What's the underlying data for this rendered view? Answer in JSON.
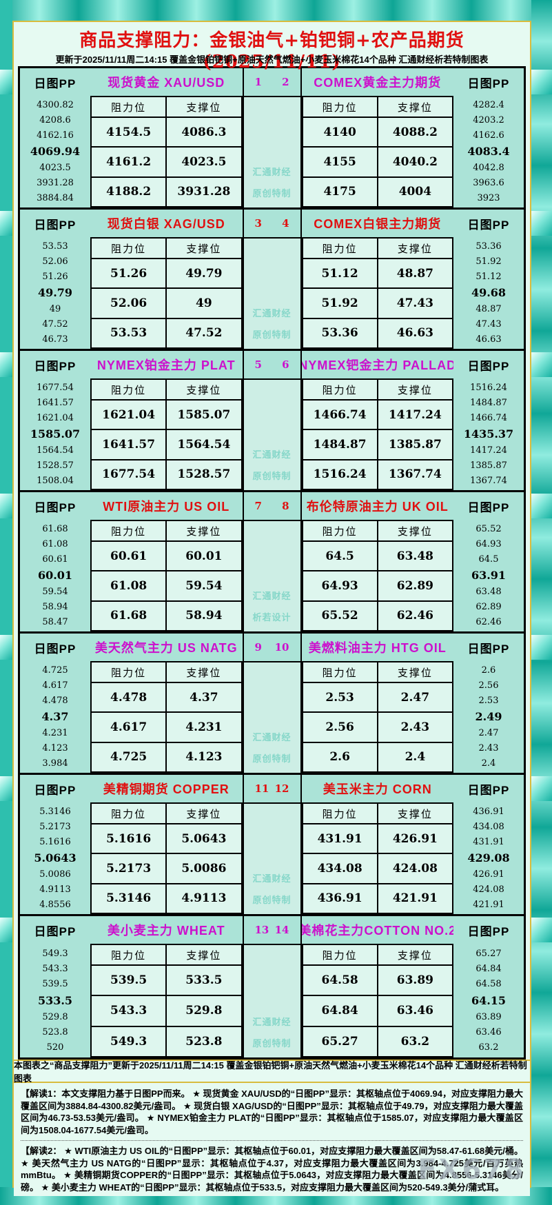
{
  "header": {
    "title": "商品支撑阻力：金银油气+铂钯铜+农产品期货(2025/11/11)",
    "subtitle": "更新于2025/11/11周二14:15 覆盖金银铂钯铜+原油天然气燃油+小麦玉米棉花14个品种 汇通财经析若特制图表"
  },
  "labels": {
    "pp_header": "日图PP",
    "resistance": "阻力位",
    "support": "支撑位"
  },
  "colors": {
    "magenta": "#cc10cc",
    "red": "#e01010",
    "gold_border": "#d8bc3e",
    "panel_bg": "#e6faf2",
    "section_bg": "#abe3d7",
    "cell_bg": "#def6ee",
    "center_bg": "#cdeee5",
    "watermark_teal": "#86d7c9"
  },
  "chart_data": {
    "type": "table",
    "title": "商品支撑阻力：金银油气+铂钯铜+农产品期货(2025/11/11)",
    "updated": "2025/11/11周二14:15",
    "columns": [
      "阻力位",
      "支撑位"
    ],
    "groups": [
      {
        "color": "#cc10cc",
        "index_left": "1",
        "index_right": "2",
        "watermark": [
          "汇通财经",
          "原创特制"
        ],
        "left": {
          "name": "现货黄金 XAU/USD",
          "pivots": [
            "4300.82",
            "4208.6",
            "4162.16",
            "4069.94",
            "4023.5",
            "3931.28",
            "3884.84"
          ],
          "resistance": [
            "4154.5",
            "4161.2",
            "4188.2"
          ],
          "support": [
            "4086.3",
            "4023.5",
            "3931.28"
          ]
        },
        "right": {
          "name": "COMEX黄金主力期货",
          "pivots": [
            "4282.4",
            "4203.2",
            "4162.6",
            "4083.4",
            "4042.8",
            "3963.6",
            "3923"
          ],
          "resistance": [
            "4140",
            "4155",
            "4175"
          ],
          "support": [
            "4088.2",
            "4040.2",
            "4004"
          ]
        }
      },
      {
        "color": "#e01010",
        "index_left": "3",
        "index_right": "4",
        "watermark": [
          "汇通财经",
          "原创特制"
        ],
        "left": {
          "name": "现货白银 XAG/USD",
          "pivots": [
            "53.53",
            "52.06",
            "51.26",
            "49.79",
            "49",
            "47.52",
            "46.73"
          ],
          "resistance": [
            "51.26",
            "52.06",
            "53.53"
          ],
          "support": [
            "49.79",
            "49",
            "47.52"
          ]
        },
        "right": {
          "name": "COMEX白银主力期货",
          "pivots": [
            "53.36",
            "51.92",
            "51.12",
            "49.68",
            "48.87",
            "47.43",
            "46.63"
          ],
          "resistance": [
            "51.12",
            "51.92",
            "53.36"
          ],
          "support": [
            "48.87",
            "47.43",
            "46.63"
          ]
        }
      },
      {
        "color": "#cc10cc",
        "index_left": "5",
        "index_right": "6",
        "watermark": [
          "汇通财经",
          "原创特制"
        ],
        "left": {
          "name": "NYMEX铂金主力 PLAT",
          "pivots": [
            "1677.54",
            "1641.57",
            "1621.04",
            "1585.07",
            "1564.54",
            "1528.57",
            "1508.04"
          ],
          "resistance": [
            "1621.04",
            "1641.57",
            "1677.54"
          ],
          "support": [
            "1585.07",
            "1564.54",
            "1528.57"
          ]
        },
        "right": {
          "name": "NYMEX钯金主力 PALLAD",
          "pivots": [
            "1516.24",
            "1484.87",
            "1466.74",
            "1435.37",
            "1417.24",
            "1385.87",
            "1367.74"
          ],
          "resistance": [
            "1466.74",
            "1484.87",
            "1516.24"
          ],
          "support": [
            "1417.24",
            "1385.87",
            "1367.74"
          ]
        }
      },
      {
        "color": "#e01010",
        "index_left": "7",
        "index_right": "8",
        "watermark": [
          "汇通财经",
          "析若设计"
        ],
        "left": {
          "name": "WTI原油主力 US OIL",
          "pivots": [
            "61.68",
            "61.08",
            "60.61",
            "60.01",
            "59.54",
            "58.94",
            "58.47"
          ],
          "resistance": [
            "60.61",
            "61.08",
            "61.68"
          ],
          "support": [
            "60.01",
            "59.54",
            "58.94"
          ]
        },
        "right": {
          "name": "布伦特原油主力 UK OIL",
          "pivots": [
            "65.52",
            "64.93",
            "64.5",
            "63.91",
            "63.48",
            "62.89",
            "62.46"
          ],
          "resistance": [
            "64.5",
            "64.93",
            "65.52"
          ],
          "support": [
            "63.48",
            "62.89",
            "62.46"
          ]
        }
      },
      {
        "color": "#cc10cc",
        "index_left": "9",
        "index_right": "10",
        "watermark": [
          "汇通财经",
          "原创特制"
        ],
        "left": {
          "name": "美天然气主力 US NATG",
          "pivots": [
            "4.725",
            "4.617",
            "4.478",
            "4.37",
            "4.231",
            "4.123",
            "3.984"
          ],
          "resistance": [
            "4.478",
            "4.617",
            "4.725"
          ],
          "support": [
            "4.37",
            "4.231",
            "4.123"
          ]
        },
        "right": {
          "name": "美燃料油主力 HTG OIL",
          "pivots": [
            "2.6",
            "2.56",
            "2.53",
            "2.49",
            "2.47",
            "2.43",
            "2.4"
          ],
          "resistance": [
            "2.53",
            "2.56",
            "2.6"
          ],
          "support": [
            "2.47",
            "2.43",
            "2.4"
          ]
        }
      },
      {
        "color": "#e01010",
        "index_left": "11",
        "index_right": "12",
        "watermark": [
          "汇通财经",
          "原创特制"
        ],
        "left": {
          "name": "美精铜期货 COPPER",
          "pivots": [
            "5.3146",
            "5.2173",
            "5.1616",
            "5.0643",
            "5.0086",
            "4.9113",
            "4.8556"
          ],
          "resistance": [
            "5.1616",
            "5.2173",
            "5.3146"
          ],
          "support": [
            "5.0643",
            "5.0086",
            "4.9113"
          ]
        },
        "right": {
          "name": "美玉米主力 CORN",
          "pivots": [
            "436.91",
            "434.08",
            "431.91",
            "429.08",
            "426.91",
            "424.08",
            "421.91"
          ],
          "resistance": [
            "431.91",
            "434.08",
            "436.91"
          ],
          "support": [
            "426.91",
            "424.08",
            "421.91"
          ]
        }
      },
      {
        "color": "#cc10cc",
        "index_left": "13",
        "index_right": "14",
        "watermark": [
          "汇通财经",
          "原创特制"
        ],
        "left": {
          "name": "美小麦主力 WHEAT",
          "pivots": [
            "549.3",
            "543.3",
            "539.5",
            "533.5",
            "529.8",
            "523.8",
            "520"
          ],
          "resistance": [
            "539.5",
            "543.3",
            "549.3"
          ],
          "support": [
            "533.5",
            "529.8",
            "523.8"
          ]
        },
        "right": {
          "name": "美棉花主力COTTON NO.2",
          "pivots": [
            "65.27",
            "64.84",
            "64.58",
            "64.15",
            "63.89",
            "63.46",
            "63.2"
          ],
          "resistance": [
            "64.58",
            "64.84",
            "65.27"
          ],
          "support": [
            "63.89",
            "63.46",
            "63.2"
          ]
        }
      }
    ]
  },
  "footer": {
    "bar": "本图表之“商品支撑阻力”更新于2025/11/11周二14:15 覆盖金银铂钯铜+原油天然气燃油+小麦玉米棉花14个品种 汇通财经析若特制图表"
  },
  "notes": [
    "【解读1：本文支撑阻力基于日图PP而来。 ★ 现货黄金 XAU/USD的“日图PP”显示：其枢轴点位于4069.94，对应支撑阻力最大覆盖区间为3884.84-4300.82美元/盎司。 ★ 现货白银 XAG/USD的“日图PP”显示：其枢轴点位于49.79，对应支撑阻力最大覆盖区间为46.73-53.53美元/盎司。 ★ NYMEX铂金主力 PLAT的“日图PP”显示：其枢轴点位于1585.07，对应支撑阻力最大覆盖区间为1508.04-1677.54美元/盎司。",
    "【解读2： ★ WTI原油主力 US OIL的“日图PP”显示：其枢轴点位于60.01，对应支撑阻力最大覆盖区间为58.47-61.68美元/桶。 ★ 美天然气主力 US NATG的“日图PP”显示：其枢轴点位于4.37，对应支撑阻力最大覆盖区间为3.984-4.725美元/百万英热mmBtu。 ★ 美精铜期货COPPER的“日图PP”显示：其枢轴点位于5.0643，对应支撑阻力最大覆盖区间为4.8556-5.3146美分/磅。 ★ 美小麦主力 WHEAT的“日图PP”显示：其枢轴点位于533.5，对应支撑阻力最大覆盖区间为520-549.3美分/蒲式耳。"
  ],
  "watermark_logo": "FX678"
}
